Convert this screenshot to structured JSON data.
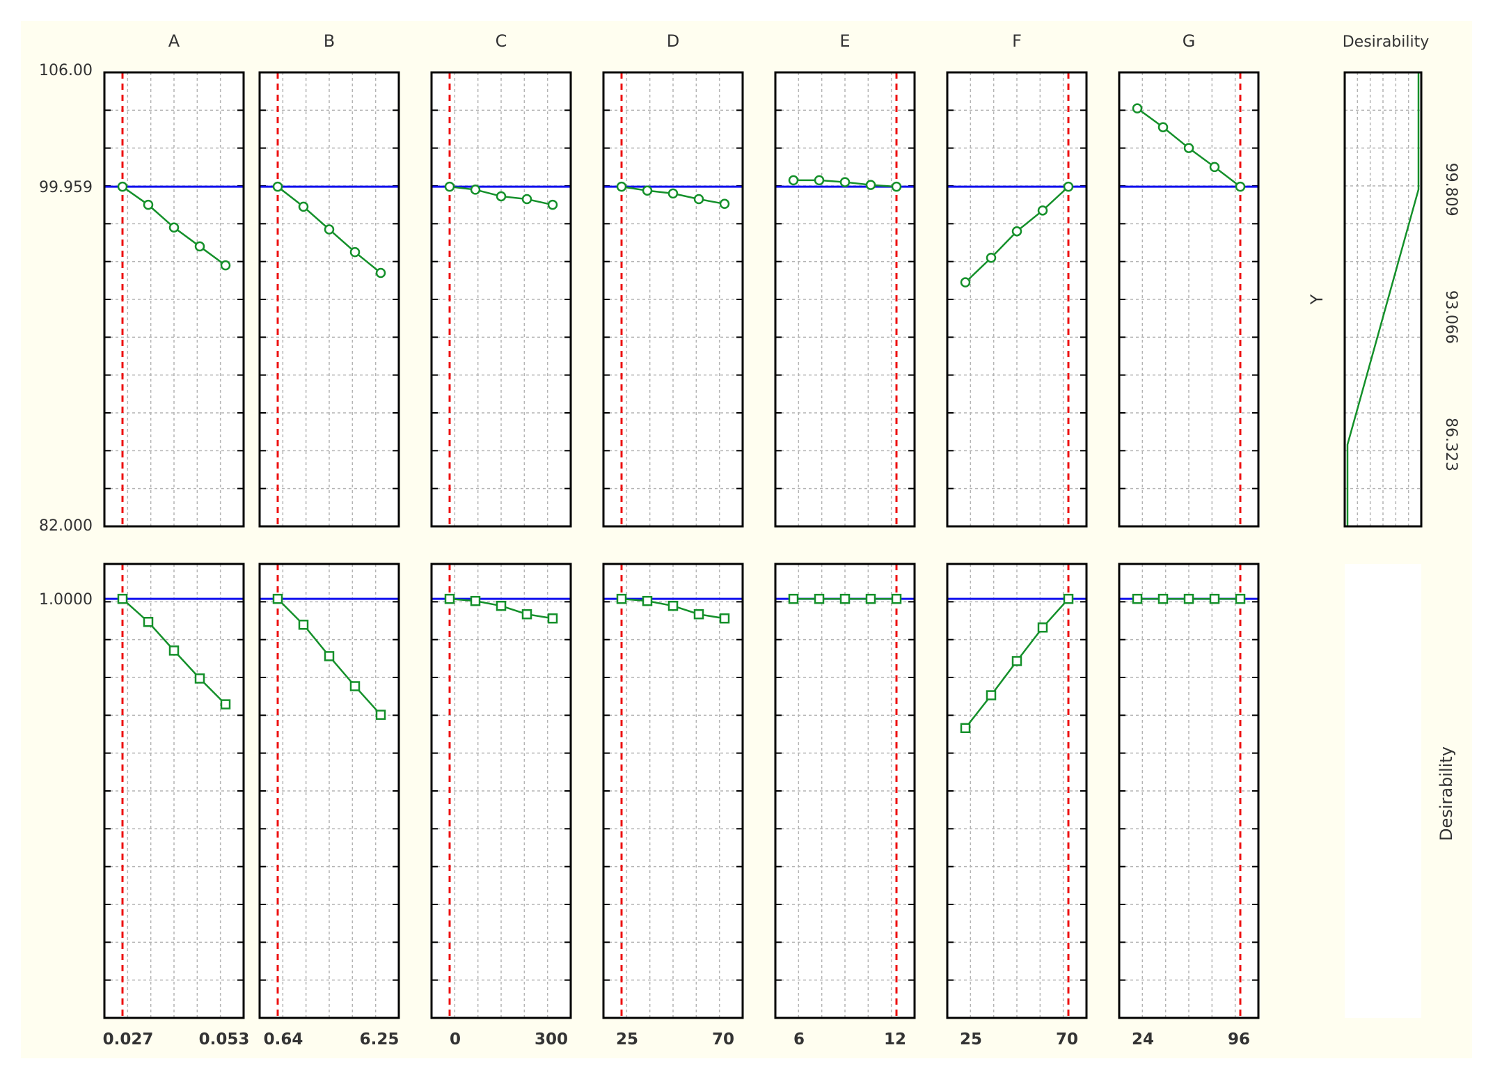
{
  "chart_data": {
    "type": "line",
    "factors": [
      {
        "name": "A",
        "ticks": [
          "0.027",
          "0.053"
        ],
        "y": [
          99.959,
          99.0,
          97.8,
          96.8,
          95.8
        ],
        "d": [
          1.0,
          0.967,
          0.926,
          0.886,
          0.849
        ],
        "current_index": 0
      },
      {
        "name": "B",
        "ticks": [
          "0.64",
          "6.25"
        ],
        "y": [
          99.959,
          98.9,
          97.7,
          96.5,
          95.4
        ],
        "d": [
          1.0,
          0.963,
          0.918,
          0.875,
          0.834
        ],
        "current_index": 0
      },
      {
        "name": "C",
        "ticks": [
          "0",
          "300"
        ],
        "y": [
          99.959,
          99.8,
          99.45,
          99.3,
          99.0
        ],
        "d": [
          1.0,
          0.997,
          0.99,
          0.978,
          0.972
        ],
        "current_index": 0
      },
      {
        "name": "D",
        "ticks": [
          "25",
          "70"
        ],
        "y": [
          99.959,
          99.75,
          99.6,
          99.3,
          99.05
        ],
        "d": [
          1.0,
          0.997,
          0.99,
          0.978,
          0.972
        ],
        "current_index": 0
      },
      {
        "name": "E",
        "ticks": [
          "6",
          "12"
        ],
        "y": [
          100.3,
          100.3,
          100.2,
          100.05,
          99.959
        ],
        "d": [
          1.0,
          1.0,
          1.0,
          1.0,
          1.0
        ],
        "current_index": 4
      },
      {
        "name": "F",
        "ticks": [
          "25",
          "70"
        ],
        "y": [
          94.9,
          96.2,
          97.6,
          98.7,
          99.959
        ],
        "d": [
          0.815,
          0.862,
          0.911,
          0.959,
          1.0
        ],
        "current_index": 4
      },
      {
        "name": "G",
        "ticks": [
          "24",
          "96"
        ],
        "y": [
          104.1,
          103.1,
          102.0,
          101.0,
          99.959
        ],
        "d": [
          1.0,
          1.0,
          1.0,
          1.0,
          1.0
        ],
        "current_index": 4
      }
    ],
    "y_axis": {
      "label": "Y",
      "ylim": [
        82.0,
        106.0
      ],
      "ticks": [
        "106.00",
        "99.959",
        "82.000"
      ],
      "current": 99.959
    },
    "d_axis": {
      "label": "Desirability",
      "ticks": [
        "1.0000"
      ],
      "ylim": [
        0.4,
        1.05
      ],
      "current": 1.0
    },
    "desirability_column": {
      "title": "Desirability",
      "ticks": [
        "99.809",
        "93.066",
        "86.323"
      ],
      "profile": [
        [
          0.0,
          82.0
        ],
        [
          0.0,
          86.323
        ],
        [
          0.5,
          93.066
        ],
        [
          1.0,
          99.809
        ],
        [
          1.0,
          106.0
        ]
      ]
    },
    "colors": {
      "line": "#14902a",
      "current_y": "#1010ee",
      "current_x": "#ee1010",
      "grid": "#b4b4b4",
      "frame": "#000000",
      "background": "#fffef0"
    }
  }
}
